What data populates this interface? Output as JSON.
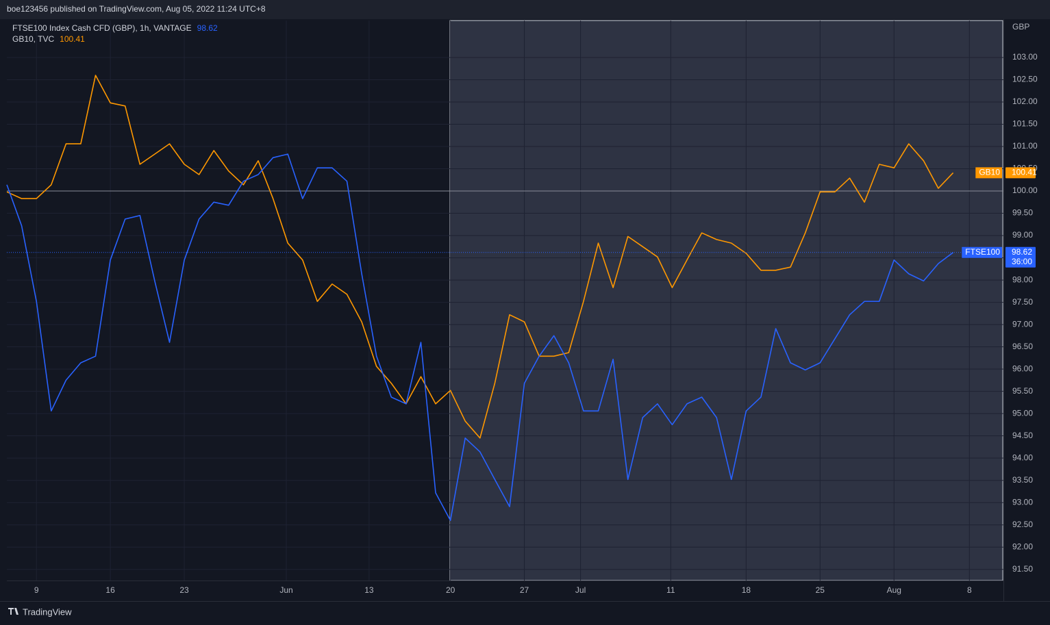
{
  "header": "boe123456 published on TradingView.com, Aug 05, 2022 11:24 UTC+8",
  "footer": "TradingView",
  "chart_data": {
    "type": "line",
    "axis_unit": "GBP",
    "countdown": "36:00",
    "x": [
      -2,
      -1,
      0,
      1,
      2,
      3,
      4,
      5,
      6,
      7,
      8,
      9,
      10,
      11,
      12,
      13,
      14,
      15,
      16,
      17,
      18,
      19,
      20,
      21,
      22,
      23,
      24,
      25,
      26,
      27,
      28,
      29,
      30,
      31,
      32,
      33,
      34,
      35,
      36,
      37,
      38,
      39,
      40,
      41,
      42,
      43,
      44,
      45,
      46,
      47,
      48,
      49,
      50,
      51,
      52,
      53,
      54,
      55,
      56,
      57,
      58,
      59,
      60,
      61,
      62
    ],
    "xlim": [
      -2,
      65.4
    ],
    "xticks": [
      {
        "value": 0,
        "label": "9"
      },
      {
        "value": 5,
        "label": "16"
      },
      {
        "value": 10,
        "label": "23"
      },
      {
        "value": 16.9,
        "label": "Jun"
      },
      {
        "value": 22.5,
        "label": "13"
      },
      {
        "value": 28,
        "label": "20"
      },
      {
        "value": 33,
        "label": "27"
      },
      {
        "value": 36.8,
        "label": "Jul"
      },
      {
        "value": 42.9,
        "label": "11"
      },
      {
        "value": 48,
        "label": "18"
      },
      {
        "value": 53,
        "label": "25"
      },
      {
        "value": 58,
        "label": "Aug"
      },
      {
        "value": 63.1,
        "label": "8"
      }
    ],
    "ylim": [
      91.25,
      103.83
    ],
    "yticks": [
      {
        "value": 91.5,
        "label": "91.50"
      },
      {
        "value": 92,
        "label": "92.00"
      },
      {
        "value": 92.5,
        "label": "92.50"
      },
      {
        "value": 93,
        "label": "93.00"
      },
      {
        "value": 93.5,
        "label": "93.50"
      },
      {
        "value": 94,
        "label": "94.00"
      },
      {
        "value": 94.5,
        "label": "94.50"
      },
      {
        "value": 95,
        "label": "95.00"
      },
      {
        "value": 95.5,
        "label": "95.50"
      },
      {
        "value": 96,
        "label": "96.00"
      },
      {
        "value": 96.5,
        "label": "96.50"
      },
      {
        "value": 97,
        "label": "97.00"
      },
      {
        "value": 97.5,
        "label": "97.50"
      },
      {
        "value": 98,
        "label": "98.00"
      },
      {
        "value": 98.5,
        "label": "98.50"
      },
      {
        "value": 99,
        "label": "99.00"
      },
      {
        "value": 99.5,
        "label": "99.50"
      },
      {
        "value": 100,
        "label": "100.00"
      },
      {
        "value": 100.5,
        "label": "100.50"
      },
      {
        "value": 101,
        "label": "101.00"
      },
      {
        "value": 101.5,
        "label": "101.50"
      },
      {
        "value": 102,
        "label": "102.00"
      },
      {
        "value": 102.5,
        "label": "102.50"
      },
      {
        "value": 103,
        "label": "103.00"
      }
    ],
    "grid": true,
    "series": [
      {
        "name": "FTSE100 Index Cash CFD (GBP), 1h, VANTAGE",
        "tag": "FTSE100",
        "color": "#2962ff",
        "values": [
          100.14,
          99.22,
          97.52,
          95.06,
          95.75,
          96.14,
          96.29,
          98.45,
          99.37,
          99.45,
          97.98,
          96.6,
          98.45,
          99.37,
          99.75,
          99.68,
          100.22,
          100.37,
          100.75,
          100.83,
          99.83,
          100.52,
          100.52,
          100.22,
          98.14,
          96.29,
          95.37,
          95.22,
          96.6,
          93.22,
          92.6,
          94.45,
          94.14,
          93.52,
          92.91,
          95.68,
          96.29,
          96.75,
          96.14,
          95.06,
          95.06,
          96.22,
          93.52,
          94.91,
          95.22,
          94.75,
          95.22,
          95.37,
          94.91,
          93.52,
          95.06,
          95.37,
          96.91,
          96.14,
          95.98,
          96.14,
          96.68,
          97.22,
          97.52,
          97.52,
          98.45,
          98.14,
          97.98,
          98.37,
          98.62
        ]
      },
      {
        "name": "GB10, TVC",
        "tag": "GB10",
        "color": "#ff9800",
        "values": [
          99.98,
          99.83,
          99.83,
          100.14,
          101.06,
          101.06,
          102.6,
          101.98,
          101.91,
          100.6,
          100.83,
          101.06,
          100.6,
          100.37,
          100.91,
          100.45,
          100.14,
          100.68,
          99.83,
          98.83,
          98.45,
          97.52,
          97.91,
          97.68,
          97.06,
          96.06,
          95.68,
          95.22,
          95.83,
          95.22,
          95.52,
          94.83,
          94.45,
          95.68,
          97.22,
          97.06,
          96.29,
          96.29,
          96.37,
          97.52,
          98.83,
          97.83,
          98.98,
          98.75,
          98.52,
          97.83,
          98.45,
          99.06,
          98.91,
          98.83,
          98.6,
          98.22,
          98.22,
          98.29,
          99.06,
          99.98,
          99.98,
          100.29,
          99.75,
          100.6,
          100.52,
          101.06,
          100.68,
          100.06,
          100.41
        ]
      }
    ]
  }
}
